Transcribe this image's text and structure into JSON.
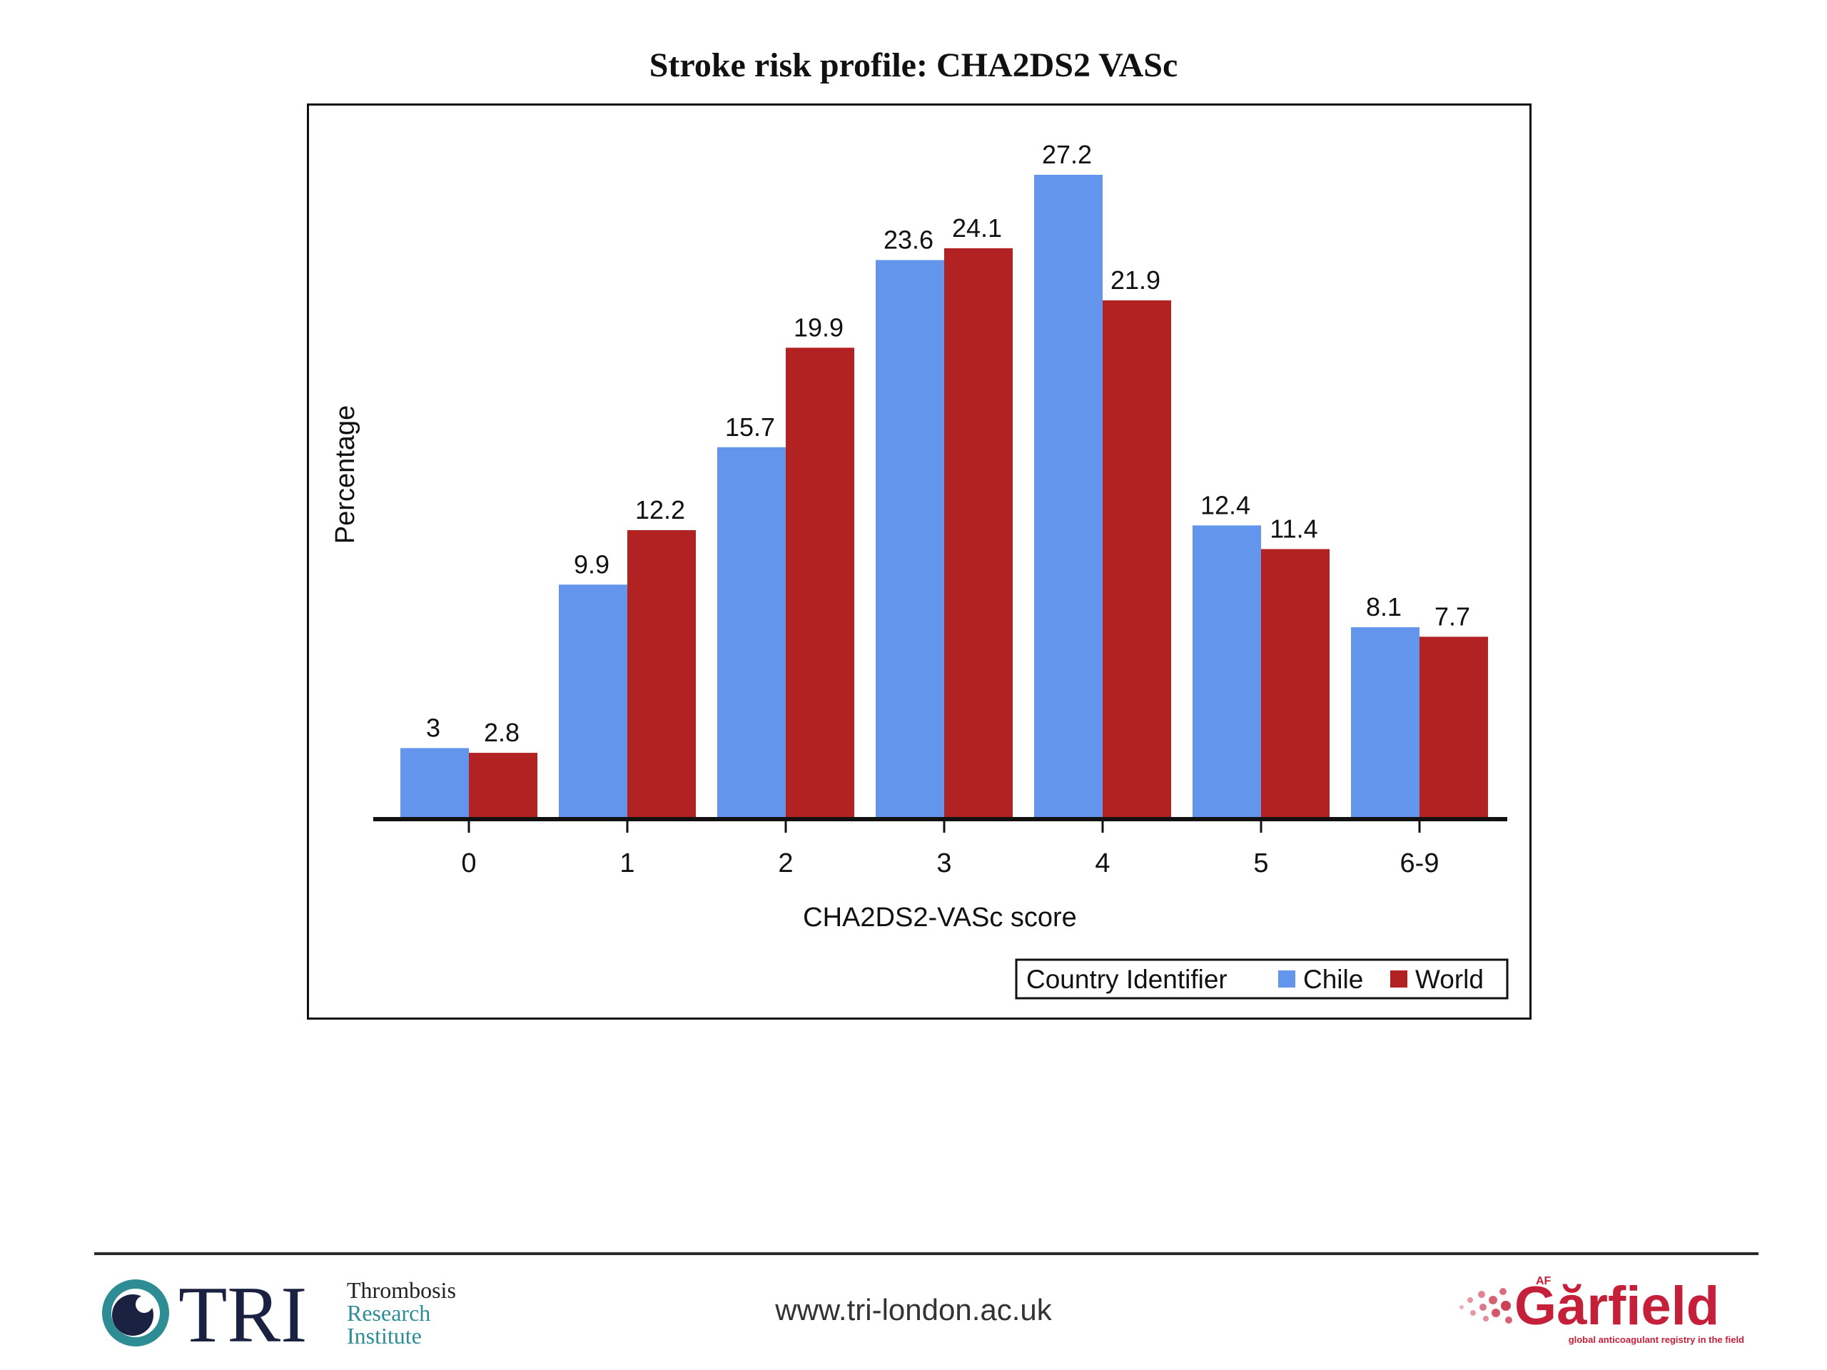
{
  "slide": {
    "title": "Stroke risk profile: CHA2DS2 VASc",
    "url": "www.tri-london.ac.uk"
  },
  "logos": {
    "tri": {
      "mark": "TRI",
      "line1": "Thrombosis",
      "line2": "Research",
      "line3": "Institute"
    },
    "garfield": {
      "wordmark": "Gărfield",
      "superscript": "AF",
      "tagline": "global anticoagulant registry in the field"
    }
  },
  "colors": {
    "chile": "#6495ED",
    "world": "#B22222",
    "tri_teal": "#2E8C95",
    "tri_navy": "#1B2140",
    "garfield_red": "#C4203A"
  },
  "chart_data": {
    "type": "bar",
    "title": "Stroke risk profile: CHA2DS2 VASc",
    "xlabel": "CHA2DS2-VASc score",
    "ylabel": "Percentage",
    "ylim": [
      0,
      30
    ],
    "grid": false,
    "categories": [
      "0",
      "1",
      "2",
      "3",
      "4",
      "5",
      "6-9"
    ],
    "series": [
      {
        "name": "Chile",
        "color": "#6495ED",
        "values": [
          3,
          9.9,
          15.7,
          23.6,
          27.2,
          12.4,
          8.1
        ]
      },
      {
        "name": "World",
        "color": "#B22222",
        "values": [
          2.8,
          12.2,
          19.9,
          24.1,
          21.9,
          11.4,
          7.7
        ]
      }
    ],
    "legend": {
      "title": "Country Identifier",
      "placement": "bottom-right"
    }
  }
}
